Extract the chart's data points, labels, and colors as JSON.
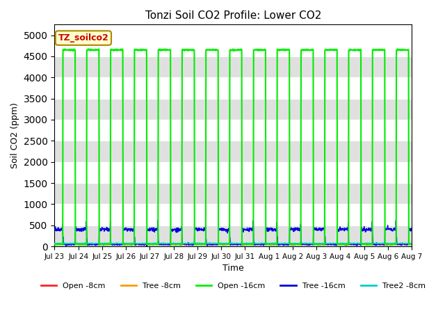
{
  "title": "Tonzi Soil CO2 Profile: Lower CO2",
  "xlabel": "Time",
  "ylabel": "Soil CO2 (ppm)",
  "ylim": [
    0,
    5250
  ],
  "yticks": [
    0,
    500,
    1000,
    1500,
    2000,
    2500,
    3000,
    3500,
    4000,
    4500,
    5000
  ],
  "bg_color": "#ffffff",
  "band_color": "#e0e0e0",
  "annotation_text": "TZ_soilco2",
  "annotation_bg": "#ffffcc",
  "annotation_border": "#aa8800",
  "annotation_text_color": "#cc0000",
  "series": {
    "open_8cm": {
      "color": "#ff2020",
      "label": "Open -8cm",
      "lw": 1.0
    },
    "tree_8cm": {
      "color": "#ff9900",
      "label": "Tree -8cm",
      "lw": 1.0
    },
    "open_16cm": {
      "color": "#00ee00",
      "label": "Open -16cm",
      "lw": 1.5
    },
    "tree_16cm": {
      "color": "#0000dd",
      "label": "Tree -16cm",
      "lw": 1.0
    },
    "tree2_8cm": {
      "color": "#00cccc",
      "label": "Tree2 -8cm",
      "lw": 1.0
    }
  },
  "xtick_labels": [
    "Jul 23",
    "Jul 24",
    "Jul 25",
    "Jul 26",
    "Jul 27",
    "Jul 28",
    "Jul 29",
    "Jul 30",
    "Jul 31",
    "Aug 1",
    "Aug 2",
    "Aug 3",
    "Aug 4",
    "Aug 5",
    "Aug 6",
    "Aug 7"
  ],
  "open16_high": 4650,
  "open16_low": 50,
  "tree16_high": 400,
  "tree16_low": 50,
  "open8_base": 50,
  "tree8_base": 60,
  "tree2_8_base": 70,
  "total_days": 15,
  "n_per_day": 96
}
